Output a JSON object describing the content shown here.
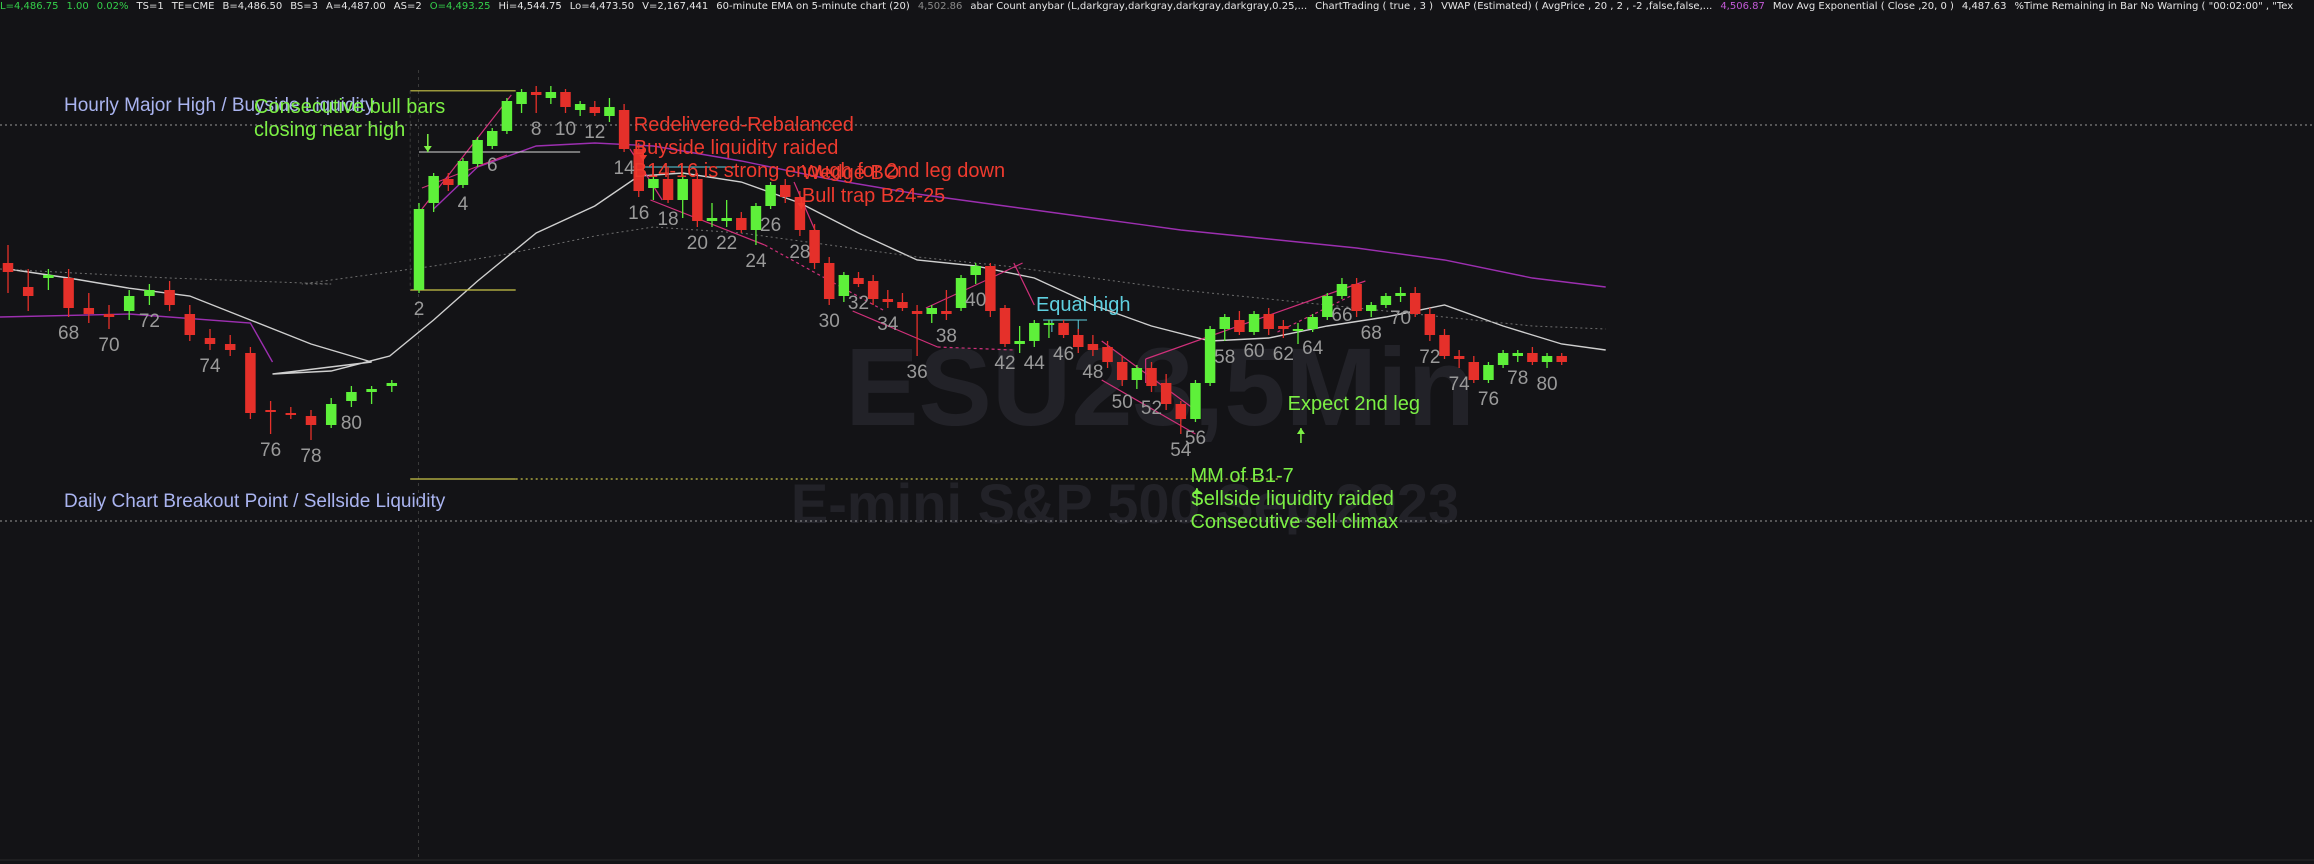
{
  "status_bar": [
    {
      "text": "L=4,486.75",
      "color": "green"
    },
    {
      "text": "1.00",
      "color": "green"
    },
    {
      "text": "0.02%",
      "color": "green"
    },
    {
      "text": "TS=1",
      "color": "white"
    },
    {
      "text": "TE=CME",
      "color": "white"
    },
    {
      "text": "B=4,486.50",
      "color": "white"
    },
    {
      "text": "BS=3",
      "color": "white"
    },
    {
      "text": "A=4,487.00",
      "color": "white"
    },
    {
      "text": "AS=2",
      "color": "white"
    },
    {
      "text": "O=4,493.25",
      "color": "green"
    },
    {
      "text": "Hi=4,544.75",
      "color": "white"
    },
    {
      "text": "Lo=4,473.50",
      "color": "white"
    },
    {
      "text": "V=2,167,441",
      "color": "white"
    },
    {
      "text": "60-minute EMA on 5-minute chart (20)",
      "color": "white"
    },
    {
      "text": "4,502.86",
      "color": "gray"
    },
    {
      "text": "abar Count anybar (L,darkgray,darkgray,darkgray,darkgray,0.25,...",
      "color": "white"
    },
    {
      "text": "ChartTrading ( true , 3 )",
      "color": "white"
    },
    {
      "text": "VWAP (Estimated) ( AvgPrice , 20 , 2 , -2 ,false,false,...",
      "color": "white"
    },
    {
      "text": "4,506.87",
      "color": "purple"
    },
    {
      "text": "Mov Avg Exponential ( Close ,20, 0 )",
      "color": "white"
    },
    {
      "text": "4,487.63",
      "color": "white"
    },
    {
      "text": "%Time Remaining in Bar No Warning ( \"00:02:00\" , \"Tex",
      "color": "white"
    }
  ],
  "watermark": {
    "symbol": "ESU23,5Min",
    "name": "E-mini S&P 500 Sep 2023"
  },
  "colors": {
    "background": "#131316",
    "bull": "#5ef03a",
    "bear": "#e5302a",
    "ema": "#cfcfcf",
    "vwap": "#9c2fb0",
    "band": "#6e6e6e",
    "trend": "#d0307a",
    "level": "#b8b8b8",
    "box": "#c9c448",
    "cyan": "#5fd0e0",
    "label_gray": "#9a9a9a"
  },
  "chart_data": {
    "type": "candlestick",
    "title": "ESU23,5Min",
    "subtitle": "E-mini S&P 500 Sep 2023",
    "timeframe": "5-minute",
    "price_range": [
      4470,
      4550
    ],
    "levels": [
      {
        "label": "Hourly Major High / Buyside Liquidity",
        "price": 4540.0,
        "style": "dotted"
      },
      {
        "label": "Daily Chart Breakout Point / Sellside Liquidity",
        "price": 4474.0,
        "style": "dotted"
      }
    ],
    "bars_before_gap": [
      {
        "o": 4517.0,
        "h": 4520.0,
        "l": 4512.0,
        "c": 4515.5,
        "bull": false
      },
      {
        "o": 4513.0,
        "h": 4516.0,
        "l": 4509.0,
        "c": 4511.5,
        "bull": false
      },
      {
        "o": 4514.5,
        "h": 4516.0,
        "l": 4512.5,
        "c": 4515.0,
        "bull": true
      },
      {
        "o": 4514.5,
        "h": 4516.0,
        "l": 4508.0,
        "c": 4509.5,
        "bull": false,
        "label": "68"
      },
      {
        "o": 4509.5,
        "h": 4512.0,
        "l": 4507.0,
        "c": 4508.5,
        "bull": false
      },
      {
        "o": 4508.5,
        "h": 4510.0,
        "l": 4506.0,
        "c": 4508.0,
        "bull": false,
        "label": "70"
      },
      {
        "o": 4509.0,
        "h": 4512.5,
        "l": 4507.5,
        "c": 4511.5,
        "bull": true
      },
      {
        "o": 4511.5,
        "h": 4513.5,
        "l": 4510.0,
        "c": 4512.5,
        "bull": true,
        "label": "72"
      },
      {
        "o": 4512.5,
        "h": 4514.0,
        "l": 4509.0,
        "c": 4510.0,
        "bull": false
      },
      {
        "o": 4508.5,
        "h": 4510.0,
        "l": 4504.0,
        "c": 4505.0,
        "bull": false
      },
      {
        "o": 4504.5,
        "h": 4506.0,
        "l": 4502.5,
        "c": 4503.5,
        "bull": false,
        "label": "74"
      },
      {
        "o": 4503.5,
        "h": 4505.0,
        "l": 4501.5,
        "c": 4502.5,
        "bull": false
      },
      {
        "o": 4502.0,
        "h": 4503.0,
        "l": 4491.0,
        "c": 4492.0,
        "bull": false
      },
      {
        "o": 4492.5,
        "h": 4494.0,
        "l": 4488.5,
        "c": 4492.5,
        "bull": false,
        "label": "76"
      },
      {
        "o": 4492.0,
        "h": 4493.0,
        "l": 4491.0,
        "c": 4492.0,
        "bull": false
      },
      {
        "o": 4491.5,
        "h": 4492.5,
        "l": 4487.5,
        "c": 4490.0,
        "bull": false,
        "label": "78"
      },
      {
        "o": 4490.0,
        "h": 4494.5,
        "l": 4489.5,
        "c": 4493.5,
        "bull": true
      },
      {
        "o": 4494.0,
        "h": 4496.5,
        "l": 4493.0,
        "c": 4495.5,
        "bull": true,
        "label": "80"
      },
      {
        "o": 4495.5,
        "h": 4496.5,
        "l": 4493.5,
        "c": 4496.0,
        "bull": true
      },
      {
        "o": 4496.5,
        "h": 4497.5,
        "l": 4495.5,
        "c": 4497.0,
        "bull": true
      }
    ],
    "bars": [
      {
        "o": 4512.5,
        "h": 4527.0,
        "l": 4512.0,
        "c": 4526.0,
        "bull": true,
        "label": "2"
      },
      {
        "o": 4527.0,
        "h": 4532.0,
        "l": 4525.5,
        "c": 4531.5,
        "bull": true
      },
      {
        "o": 4531.0,
        "h": 4532.0,
        "l": 4529.0,
        "c": 4530.0,
        "bull": false
      },
      {
        "o": 4530.0,
        "h": 4534.5,
        "l": 4529.5,
        "c": 4534.0,
        "bull": true,
        "label": "4"
      },
      {
        "o": 4533.5,
        "h": 4538.0,
        "l": 4533.0,
        "c": 4537.5,
        "bull": true
      },
      {
        "o": 4536.5,
        "h": 4539.5,
        "l": 4536.0,
        "c": 4539.0,
        "bull": true,
        "label": "6"
      },
      {
        "o": 4539.0,
        "h": 4544.5,
        "l": 4538.5,
        "c": 4544.0,
        "bull": true
      },
      {
        "o": 4543.5,
        "h": 4546.0,
        "l": 4542.0,
        "c": 4545.5,
        "bull": true
      },
      {
        "o": 4545.5,
        "h": 4546.5,
        "l": 4542.0,
        "c": 4545.0,
        "bull": false,
        "label": "8"
      },
      {
        "o": 4545.5,
        "h": 4546.5,
        "l": 4543.5,
        "c": 4544.5,
        "bull": true
      },
      {
        "o": 4545.5,
        "h": 4546.0,
        "l": 4542.0,
        "c": 4543.0,
        "bull": false,
        "label": "10"
      },
      {
        "o": 4542.5,
        "h": 4544.0,
        "l": 4541.5,
        "c": 4543.5,
        "bull": true
      },
      {
        "o": 4543.0,
        "h": 4544.0,
        "l": 4541.5,
        "c": 4542.0,
        "bull": false,
        "label": "12"
      },
      {
        "o": 4541.5,
        "h": 4544.5,
        "l": 4540.5,
        "c": 4543.0,
        "bull": true
      },
      {
        "o": 4542.5,
        "h": 4543.5,
        "l": 4535.5,
        "c": 4536.0,
        "bull": false,
        "label": "14"
      },
      {
        "o": 4536.0,
        "h": 4537.0,
        "l": 4528.0,
        "c": 4529.0,
        "bull": false,
        "label": "16"
      },
      {
        "o": 4529.5,
        "h": 4531.5,
        "l": 4527.5,
        "c": 4531.0,
        "bull": true
      },
      {
        "o": 4531.0,
        "h": 4533.0,
        "l": 4527.0,
        "c": 4527.5,
        "bull": false,
        "label": "18"
      },
      {
        "o": 4527.5,
        "h": 4532.0,
        "l": 4524.5,
        "c": 4531.0,
        "bull": true
      },
      {
        "o": 4531.0,
        "h": 4532.0,
        "l": 4523.0,
        "c": 4524.0,
        "bull": false,
        "label": "20"
      },
      {
        "o": 4524.5,
        "h": 4527.0,
        "l": 4523.0,
        "c": 4524.0,
        "bull": true
      },
      {
        "o": 4524.0,
        "h": 4527.5,
        "l": 4523.0,
        "c": 4524.5,
        "bull": true,
        "label": "22"
      },
      {
        "o": 4524.5,
        "h": 4525.5,
        "l": 4522.0,
        "c": 4522.5,
        "bull": false
      },
      {
        "o": 4522.5,
        "h": 4527.0,
        "l": 4520.0,
        "c": 4526.5,
        "bull": true,
        "label": "24"
      },
      {
        "o": 4526.5,
        "h": 4530.5,
        "l": 4526.0,
        "c": 4530.0,
        "bull": true,
        "label": "26"
      },
      {
        "o": 4530.0,
        "h": 4531.0,
        "l": 4527.0,
        "c": 4528.0,
        "bull": false
      },
      {
        "o": 4528.0,
        "h": 4529.0,
        "l": 4521.5,
        "c": 4522.5,
        "bull": false,
        "label": "28"
      },
      {
        "o": 4522.5,
        "h": 4523.5,
        "l": 4516.0,
        "c": 4517.0,
        "bull": false
      },
      {
        "o": 4517.0,
        "h": 4518.0,
        "l": 4510.0,
        "c": 4511.0,
        "bull": false,
        "label": "30"
      },
      {
        "o": 4511.5,
        "h": 4515.5,
        "l": 4510.5,
        "c": 4515.0,
        "bull": true
      },
      {
        "o": 4514.5,
        "h": 4515.5,
        "l": 4513.0,
        "c": 4513.5,
        "bull": false,
        "label": "32"
      },
      {
        "o": 4514.0,
        "h": 4515.0,
        "l": 4510.0,
        "c": 4511.0,
        "bull": false
      },
      {
        "o": 4511.0,
        "h": 4512.5,
        "l": 4509.5,
        "c": 4510.5,
        "bull": false,
        "label": "34"
      },
      {
        "o": 4510.5,
        "h": 4512.0,
        "l": 4509.0,
        "c": 4509.5,
        "bull": false
      },
      {
        "o": 4509.0,
        "h": 4510.0,
        "l": 4501.5,
        "c": 4508.5,
        "bull": false,
        "label": "36"
      },
      {
        "o": 4508.5,
        "h": 4510.0,
        "l": 4507.0,
        "c": 4509.5,
        "bull": true
      },
      {
        "o": 4509.0,
        "h": 4512.5,
        "l": 4507.5,
        "c": 4508.5,
        "bull": false,
        "label": "38"
      },
      {
        "o": 4509.5,
        "h": 4515.0,
        "l": 4509.0,
        "c": 4514.5,
        "bull": true
      },
      {
        "o": 4515.0,
        "h": 4517.0,
        "l": 4513.5,
        "c": 4516.5,
        "bull": true,
        "label": "40"
      },
      {
        "o": 4516.5,
        "h": 4517.0,
        "l": 4508.0,
        "c": 4509.0,
        "bull": false
      },
      {
        "o": 4509.5,
        "h": 4510.0,
        "l": 4503.0,
        "c": 4503.5,
        "bull": false,
        "label": "42"
      },
      {
        "o": 4503.5,
        "h": 4506.5,
        "l": 4502.0,
        "c": 4504.0,
        "bull": true
      },
      {
        "o": 4504.0,
        "h": 4507.5,
        "l": 4503.0,
        "c": 4507.0,
        "bull": true,
        "label": "44"
      },
      {
        "o": 4507.0,
        "h": 4507.5,
        "l": 4504.5,
        "c": 4507.0,
        "bull": true
      },
      {
        "o": 4507.0,
        "h": 4507.5,
        "l": 4504.5,
        "c": 4505.0,
        "bull": false,
        "label": "46"
      },
      {
        "o": 4505.0,
        "h": 4506.0,
        "l": 4502.0,
        "c": 4503.0,
        "bull": false
      },
      {
        "o": 4503.5,
        "h": 4505.0,
        "l": 4501.5,
        "c": 4502.5,
        "bull": false,
        "label": "48"
      },
      {
        "o": 4503.0,
        "h": 4504.0,
        "l": 4499.5,
        "c": 4500.5,
        "bull": false
      },
      {
        "o": 4500.5,
        "h": 4501.5,
        "l": 4496.5,
        "c": 4497.5,
        "bull": false,
        "label": "50"
      },
      {
        "o": 4497.5,
        "h": 4500.0,
        "l": 4496.0,
        "c": 4499.5,
        "bull": true
      },
      {
        "o": 4499.5,
        "h": 4500.5,
        "l": 4495.5,
        "c": 4496.5,
        "bull": false,
        "label": "52"
      },
      {
        "o": 4497.0,
        "h": 4498.5,
        "l": 4492.5,
        "c": 4493.5,
        "bull": false
      },
      {
        "o": 4493.5,
        "h": 4494.0,
        "l": 4488.5,
        "c": 4491.0,
        "bull": false,
        "label": "54"
      },
      {
        "o": 4491.0,
        "h": 4497.5,
        "l": 4490.5,
        "c": 4497.0,
        "bull": true,
        "label": "56"
      },
      {
        "o": 4497.0,
        "h": 4506.5,
        "l": 4496.5,
        "c": 4506.0,
        "bull": true
      },
      {
        "o": 4506.0,
        "h": 4508.5,
        "l": 4504.0,
        "c": 4508.0,
        "bull": true,
        "label": "58"
      },
      {
        "o": 4507.5,
        "h": 4509.0,
        "l": 4505.0,
        "c": 4505.5,
        "bull": false
      },
      {
        "o": 4505.5,
        "h": 4509.0,
        "l": 4505.0,
        "c": 4508.5,
        "bull": true,
        "label": "60"
      },
      {
        "o": 4508.5,
        "h": 4509.5,
        "l": 4505.0,
        "c": 4506.0,
        "bull": false
      },
      {
        "o": 4506.0,
        "h": 4507.5,
        "l": 4504.5,
        "c": 4506.5,
        "bull": false,
        "label": "62"
      },
      {
        "o": 4506.0,
        "h": 4507.0,
        "l": 4503.5,
        "c": 4506.0,
        "bull": true
      },
      {
        "o": 4506.0,
        "h": 4508.5,
        "l": 4505.5,
        "c": 4508.0,
        "bull": true,
        "label": "64"
      },
      {
        "o": 4508.0,
        "h": 4512.0,
        "l": 4507.5,
        "c": 4511.5,
        "bull": true
      },
      {
        "o": 4511.5,
        "h": 4514.5,
        "l": 4511.0,
        "c": 4513.5,
        "bull": true,
        "label": "66"
      },
      {
        "o": 4513.5,
        "h": 4514.5,
        "l": 4508.0,
        "c": 4509.0,
        "bull": false
      },
      {
        "o": 4509.0,
        "h": 4510.5,
        "l": 4508.0,
        "c": 4510.0,
        "bull": true,
        "label": "68"
      },
      {
        "o": 4510.0,
        "h": 4512.0,
        "l": 4509.5,
        "c": 4511.5,
        "bull": true
      },
      {
        "o": 4511.5,
        "h": 4513.0,
        "l": 4510.5,
        "c": 4512.0,
        "bull": true,
        "label": "70"
      },
      {
        "o": 4512.0,
        "h": 4513.0,
        "l": 4508.0,
        "c": 4508.5,
        "bull": false
      },
      {
        "o": 4508.5,
        "h": 4509.5,
        "l": 4504.0,
        "c": 4505.0,
        "bull": false,
        "label": "72"
      },
      {
        "o": 4505.0,
        "h": 4506.0,
        "l": 4501.0,
        "c": 4501.5,
        "bull": false
      },
      {
        "o": 4501.5,
        "h": 4502.5,
        "l": 4499.5,
        "c": 4501.0,
        "bull": false,
        "label": "74"
      },
      {
        "o": 4500.5,
        "h": 4501.5,
        "l": 4497.0,
        "c": 4497.5,
        "bull": false
      },
      {
        "o": 4497.5,
        "h": 4500.5,
        "l": 4497.0,
        "c": 4500.0,
        "bull": true,
        "label": "76"
      },
      {
        "o": 4500.0,
        "h": 4502.5,
        "l": 4499.5,
        "c": 4502.0,
        "bull": true
      },
      {
        "o": 4501.5,
        "h": 4502.5,
        "l": 4500.5,
        "c": 4502.0,
        "bull": true,
        "label": "78"
      },
      {
        "o": 4502.0,
        "h": 4503.0,
        "l": 4500.0,
        "c": 4500.5,
        "bull": false
      },
      {
        "o": 4500.5,
        "h": 4502.0,
        "l": 4499.5,
        "c": 4501.5,
        "bull": true,
        "label": "80"
      },
      {
        "o": 4501.5,
        "h": 4502.0,
        "l": 4500.0,
        "c": 4500.5,
        "bull": false
      }
    ],
    "annotations": [
      {
        "lines": [
          "Consecutive bull bars",
          "closing near high"
        ],
        "color": "green",
        "arrow": "down",
        "bar": 0
      },
      {
        "lines": [
          "Redelivered-Rebalanced",
          "Buyside liquidity raided",
          "B14-16 is strong enough for 2nd leg down"
        ],
        "color": "red",
        "arrow": "down",
        "bar": 15
      },
      {
        "lines": [
          "Wedge BO",
          "Bull trap B24-25"
        ],
        "color": "red",
        "arrow": "down",
        "bar": 26
      },
      {
        "lines": [
          "Equal high"
        ],
        "color": "cyan",
        "arrow": "none",
        "bar": 43
      },
      {
        "lines": [
          "MM of B1-7",
          "Sellside liquidity raided",
          "Consecutive sell climax"
        ],
        "color": "green",
        "arrow": "up",
        "bar": 53
      },
      {
        "lines": [
          "Expect 2nd leg"
        ],
        "color": "green",
        "arrow": "up",
        "bar": 61
      }
    ]
  }
}
